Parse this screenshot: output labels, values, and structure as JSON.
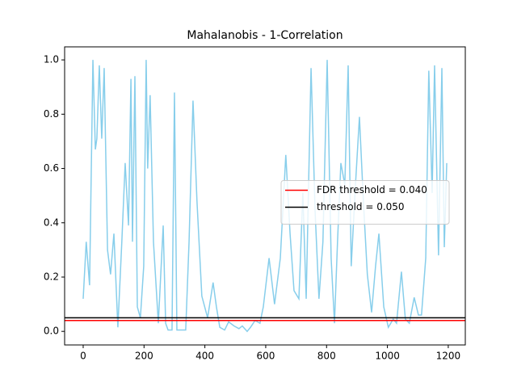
{
  "chart_data": {
    "type": "line",
    "title": "Mahalanobis - 1-Correlation",
    "x": [
      0,
      10,
      21,
      32,
      40,
      45,
      53,
      61,
      69,
      80,
      90,
      101,
      114,
      127,
      138,
      149,
      157,
      162,
      170,
      178,
      188,
      199,
      207,
      212,
      220,
      231,
      247,
      263,
      271,
      279,
      292,
      300,
      308,
      337,
      348,
      361,
      374,
      390,
      409,
      427,
      438,
      449,
      465,
      478,
      496,
      512,
      523,
      539,
      550,
      565,
      581,
      592,
      611,
      629,
      648,
      666,
      680,
      693,
      709,
      722,
      733,
      749,
      762,
      775,
      788,
      802,
      815,
      826,
      836,
      847,
      860,
      871,
      881,
      895,
      908,
      921,
      934,
      948,
      961,
      972,
      988,
      1003,
      1019,
      1030,
      1046,
      1059,
      1072,
      1088,
      1102,
      1112,
      1126,
      1136,
      1147,
      1155,
      1168,
      1179,
      1187,
      1195
    ],
    "series": [
      {
        "color": "#87ceeb",
        "values": [
          0.12,
          0.33,
          0.17,
          1.0,
          0.67,
          0.71,
          0.98,
          0.71,
          0.97,
          0.3,
          0.21,
          0.36,
          0.015,
          0.33,
          0.62,
          0.39,
          0.93,
          0.33,
          0.94,
          0.09,
          0.05,
          0.24,
          1.0,
          0.6,
          0.87,
          0.33,
          0.03,
          0.39,
          0.03,
          0.005,
          0.005,
          0.88,
          0.005,
          0.005,
          0.33,
          0.85,
          0.48,
          0.13,
          0.05,
          0.18,
          0.09,
          0.015,
          0.005,
          0.035,
          0.02,
          0.01,
          0.02,
          0.0,
          0.015,
          0.04,
          0.03,
          0.09,
          0.27,
          0.1,
          0.27,
          0.65,
          0.36,
          0.15,
          0.12,
          0.51,
          0.12,
          0.97,
          0.45,
          0.12,
          0.33,
          1.0,
          0.27,
          0.03,
          0.33,
          0.62,
          0.54,
          0.98,
          0.24,
          0.54,
          0.79,
          0.48,
          0.21,
          0.07,
          0.24,
          0.36,
          0.09,
          0.015,
          0.045,
          0.03,
          0.22,
          0.045,
          0.03,
          0.125,
          0.06,
          0.06,
          0.27,
          0.96,
          0.51,
          0.98,
          0.28,
          0.97,
          0.31,
          0.62
        ]
      }
    ],
    "hlines": [
      {
        "label": "FDR threshold = 0.040",
        "value": 0.04,
        "color": "#ff0000"
      },
      {
        "label": "threshold = 0.050",
        "value": 0.05,
        "color": "#000000"
      }
    ],
    "xlim": [
      -61,
      1256
    ],
    "ylim": [
      -0.05,
      1.048
    ],
    "xticks": [
      0,
      200,
      400,
      600,
      800,
      1000,
      1200
    ],
    "yticks": [
      {
        "value": 0,
        "label": "0.0"
      },
      {
        "value": 0.2,
        "label": "0.2"
      },
      {
        "value": 0.4,
        "label": "0.4"
      },
      {
        "value": 0.6,
        "label": "0.6"
      },
      {
        "value": 0.8,
        "label": "0.8"
      },
      {
        "value": 1,
        "label": "1.0"
      }
    ],
    "legend": "right"
  }
}
